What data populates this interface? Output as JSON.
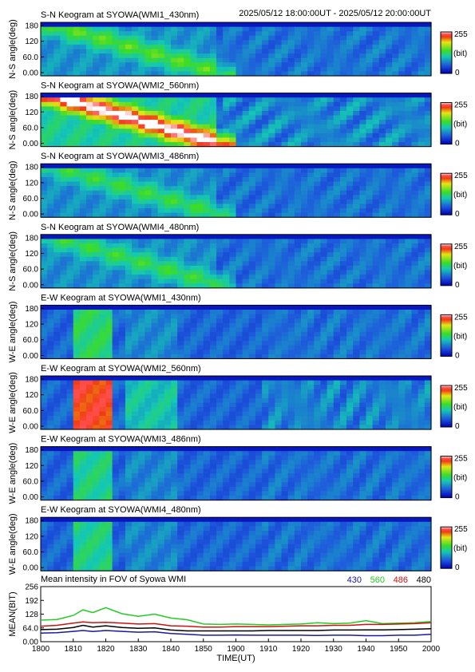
{
  "header": {
    "time_range": "2025/05/12 18:00:00UT - 2025/05/12 20:00:00UT"
  },
  "keograms": [
    {
      "title": "S-N Keogram at SYOWA(WMI1_430nm)",
      "ylabel": "N-S angle(deg)",
      "pattern": "ns",
      "intensity": 0.35
    },
    {
      "title": "S-N Keogram at SYOWA(WMI2_560nm)",
      "ylabel": "N-S angle(deg)",
      "pattern": "ns",
      "intensity": 0.85
    },
    {
      "title": "S-N Keogram at SYOWA(WMI3_486nm)",
      "ylabel": "N-S angle(deg)",
      "pattern": "ns",
      "intensity": 0.3
    },
    {
      "title": "S-N Keogram at SYOWA(WMI4_480nm)",
      "ylabel": "N-S angle(deg)",
      "pattern": "ns",
      "intensity": 0.3
    },
    {
      "title": "E-W Keogram at SYOWA(WMI1_430nm)",
      "ylabel": "W-E angle(deg)",
      "pattern": "ew",
      "intensity": 0.35
    },
    {
      "title": "E-W Keogram at SYOWA(WMI2_560nm)",
      "ylabel": "W-E angle(deg)",
      "pattern": "ew",
      "intensity": 0.9
    },
    {
      "title": "E-W Keogram at SYOWA(WMI3_486nm)",
      "ylabel": "W-E angle(deg)",
      "pattern": "ew",
      "intensity": 0.3
    },
    {
      "title": "E-W Keogram at SYOWA(WMI4_480nm)",
      "ylabel": "W-E angle(deg)",
      "pattern": "ew",
      "intensity": 0.3
    }
  ],
  "keogram_yticks": [
    "180",
    "120",
    "60.0",
    "0.00"
  ],
  "colorbar": {
    "max_label": "255",
    "unit_label": "(bit)",
    "min_label": "0"
  },
  "colors": {
    "c430": "#1a1aa0",
    "c560": "#22cc22",
    "c486": "#cc1111",
    "c480": "#000000"
  },
  "chart_data": {
    "type": "line",
    "title": "Mean intensity in FOV of Syowa WMI",
    "xlabel": "TIME(UT)",
    "ylabel": "MEAN(BIT)",
    "xlim": [
      0,
      120
    ],
    "ylim": [
      0,
      256
    ],
    "yticks": [
      "256",
      "192",
      "128",
      "64.0",
      "0.00"
    ],
    "xticks": [
      "1800",
      "1810",
      "1820",
      "1830",
      "1840",
      "1850",
      "1900",
      "1910",
      "1920",
      "1930",
      "1940",
      "1950",
      "2000"
    ],
    "x": [
      0,
      5,
      10,
      13,
      16,
      20,
      25,
      30,
      35,
      40,
      45,
      50,
      55,
      60,
      65,
      70,
      75,
      80,
      85,
      90,
      95,
      100,
      105,
      110,
      115,
      120
    ],
    "series": [
      {
        "name": "430",
        "color": "#1a1aa0",
        "values": [
          40,
          42,
          48,
          52,
          47,
          52,
          48,
          44,
          46,
          38,
          34,
          30,
          30,
          31,
          30,
          30,
          30,
          30,
          29,
          30,
          30,
          28,
          28,
          30,
          30,
          34
        ]
      },
      {
        "name": "560",
        "color": "#22cc22",
        "values": [
          100,
          103,
          122,
          148,
          135,
          158,
          130,
          118,
          128,
          110,
          102,
          82,
          80,
          82,
          80,
          78,
          80,
          82,
          88,
          84,
          86,
          98,
          84,
          86,
          88,
          94
        ]
      },
      {
        "name": "486",
        "color": "#cc1111",
        "values": [
          72,
          76,
          86,
          92,
          88,
          90,
          86,
          82,
          84,
          74,
          72,
          68,
          68,
          70,
          70,
          70,
          72,
          74,
          74,
          76,
          76,
          80,
          80,
          82,
          84,
          88
        ]
      },
      {
        "name": "480",
        "color": "#000000",
        "values": [
          56,
          58,
          66,
          76,
          68,
          74,
          66,
          62,
          64,
          54,
          50,
          50,
          50,
          50,
          50,
          52,
          52,
          52,
          52,
          54,
          54,
          55,
          55,
          56,
          58,
          60
        ]
      }
    ]
  }
}
